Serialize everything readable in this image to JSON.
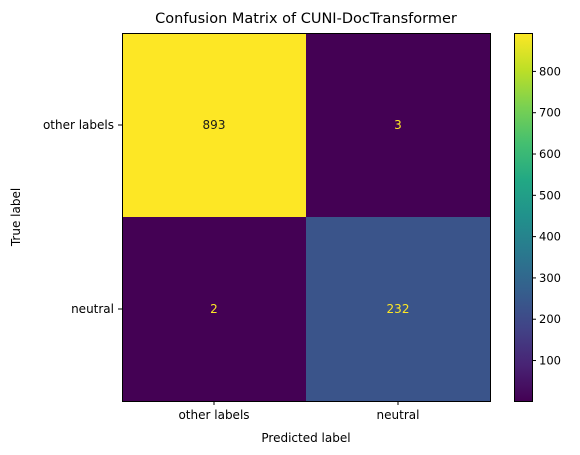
{
  "chart_data": {
    "type": "heatmap",
    "title": "Confusion Matrix of CUNI-DocTransformer",
    "xlabel": "Predicted label",
    "ylabel": "True label",
    "x_categories": [
      "other labels",
      "neutral"
    ],
    "y_categories": [
      "other labels",
      "neutral"
    ],
    "values": [
      [
        893,
        3
      ],
      [
        2,
        232
      ]
    ],
    "colormap": "viridis",
    "color_range": [
      2,
      893
    ],
    "colorbar_ticks": [
      100,
      200,
      300,
      400,
      500,
      600,
      700,
      800
    ],
    "cell_text_colors": {
      "on_dark": "#fde725",
      "on_light": "#1a1a1a"
    },
    "grid": false,
    "colorbar_position": "right"
  }
}
